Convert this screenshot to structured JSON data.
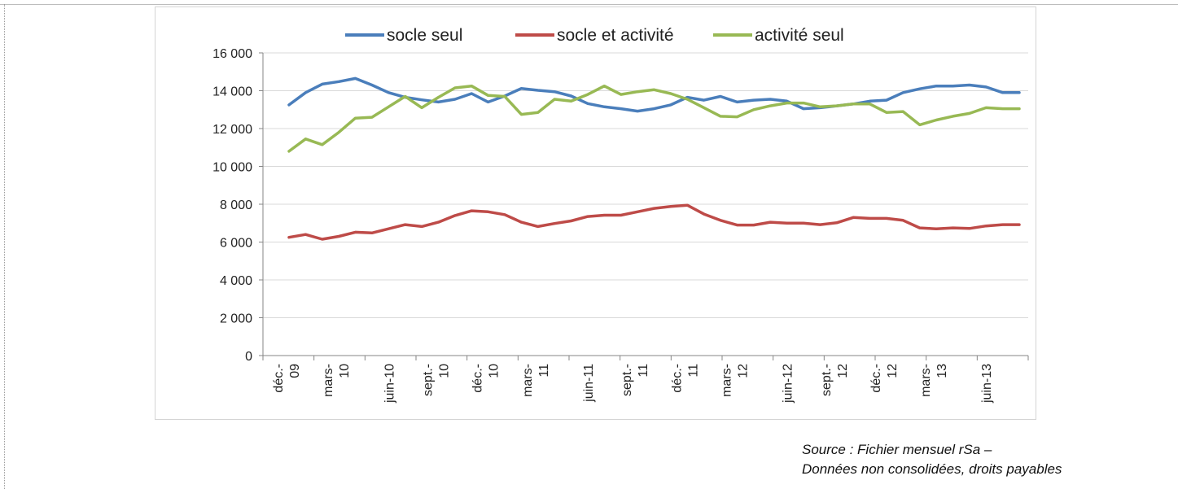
{
  "chart_data": {
    "type": "line",
    "title": "",
    "xlabel": "",
    "ylabel": "",
    "ylim": [
      0,
      16000
    ],
    "yticks": [
      "0",
      "2 000",
      "4 000",
      "6 000",
      "8 000",
      "10 000",
      "12 000",
      "14 000",
      "16 000"
    ],
    "ytick_values": [
      0,
      2000,
      4000,
      6000,
      8000,
      10000,
      12000,
      14000,
      16000
    ],
    "grid": true,
    "legend_position": "top",
    "x": [
      "déc.-09",
      "janv.-10",
      "févr.-10",
      "mars-10",
      "avr.-10",
      "mai-10",
      "juin-10",
      "juil.-10",
      "août-10",
      "sept.-10",
      "oct.-10",
      "nov.-10",
      "déc.-10",
      "janv.-11",
      "févr.-11",
      "mars-11",
      "avr.-11",
      "mai-11",
      "juin-11",
      "juil.-11",
      "août-11",
      "sept.-11",
      "oct.-11",
      "nov.-11",
      "déc.-11",
      "janv.-12",
      "févr.-12",
      "mars-12",
      "avr.-12",
      "mai-12",
      "juin-12",
      "juil.-12",
      "août-12",
      "sept.-12",
      "oct.-12",
      "nov.-12",
      "déc.-12",
      "janv.-13",
      "févr.-13",
      "mars-13",
      "avr.-13",
      "mai-13",
      "juin-13",
      "juil.-13",
      "août-13"
    ],
    "tick_labels": [
      {
        "line1": "déc.-",
        "line2": "09"
      },
      {
        "line1": "mars-",
        "line2": "10"
      },
      {
        "line1": "juin-10",
        "line2": ""
      },
      {
        "line1": "sept.-",
        "line2": "10"
      },
      {
        "line1": "déc.-",
        "line2": "10"
      },
      {
        "line1": "mars-",
        "line2": "11"
      },
      {
        "line1": "juin-11",
        "line2": ""
      },
      {
        "line1": "sept.-",
        "line2": "11"
      },
      {
        "line1": "déc.-",
        "line2": "11"
      },
      {
        "line1": "mars-",
        "line2": "12"
      },
      {
        "line1": "juin-12",
        "line2": ""
      },
      {
        "line1": "sept.-",
        "line2": "12"
      },
      {
        "line1": "déc.-",
        "line2": "12"
      },
      {
        "line1": "mars-",
        "line2": "13"
      },
      {
        "line1": "juin-13",
        "line2": ""
      }
    ],
    "series": [
      {
        "name": "socle seul",
        "color": "#4a7ebb",
        "values": [
          13250,
          13900,
          14350,
          14480,
          14650,
          14300,
          13900,
          13650,
          13520,
          13400,
          13550,
          13850,
          13400,
          13720,
          14120,
          14020,
          13950,
          13720,
          13320,
          13150,
          13050,
          12920,
          13050,
          13250,
          13650,
          13500,
          13700,
          13400,
          13500,
          13550,
          13450,
          13050,
          13100,
          13200,
          13300,
          13450,
          13500,
          13900,
          14100,
          14250,
          14250,
          14300,
          14200,
          13900,
          13900
        ]
      },
      {
        "name": "socle et activité",
        "color": "#be4b48",
        "values": [
          6250,
          6400,
          6150,
          6300,
          6520,
          6480,
          6700,
          6920,
          6820,
          7050,
          7400,
          7650,
          7600,
          7450,
          7050,
          6820,
          6980,
          7120,
          7350,
          7420,
          7420,
          7600,
          7780,
          7880,
          7950,
          7480,
          7150,
          6900,
          6900,
          7050,
          7000,
          7000,
          6920,
          7020,
          7300,
          7250,
          7250,
          7150,
          6750,
          6700,
          6750,
          6720,
          6850,
          6920,
          6920
        ]
      },
      {
        "name": "activité seul",
        "color": "#98b954",
        "values": [
          10800,
          11450,
          11150,
          11800,
          12550,
          12600,
          13150,
          13700,
          13100,
          13650,
          14150,
          14250,
          13750,
          13700,
          12750,
          12850,
          13550,
          13450,
          13800,
          14250,
          13800,
          13950,
          14050,
          13850,
          13550,
          13100,
          12650,
          12620,
          13000,
          13200,
          13350,
          13350,
          13150,
          13200,
          13300,
          13300,
          12850,
          12900,
          12200,
          12450,
          12650,
          12800,
          13100,
          13050,
          13050
        ]
      }
    ]
  },
  "source_note": {
    "line1": "Source : Fichier mensuel rSa –",
    "line2": "Données non consolidées, droits payables"
  }
}
